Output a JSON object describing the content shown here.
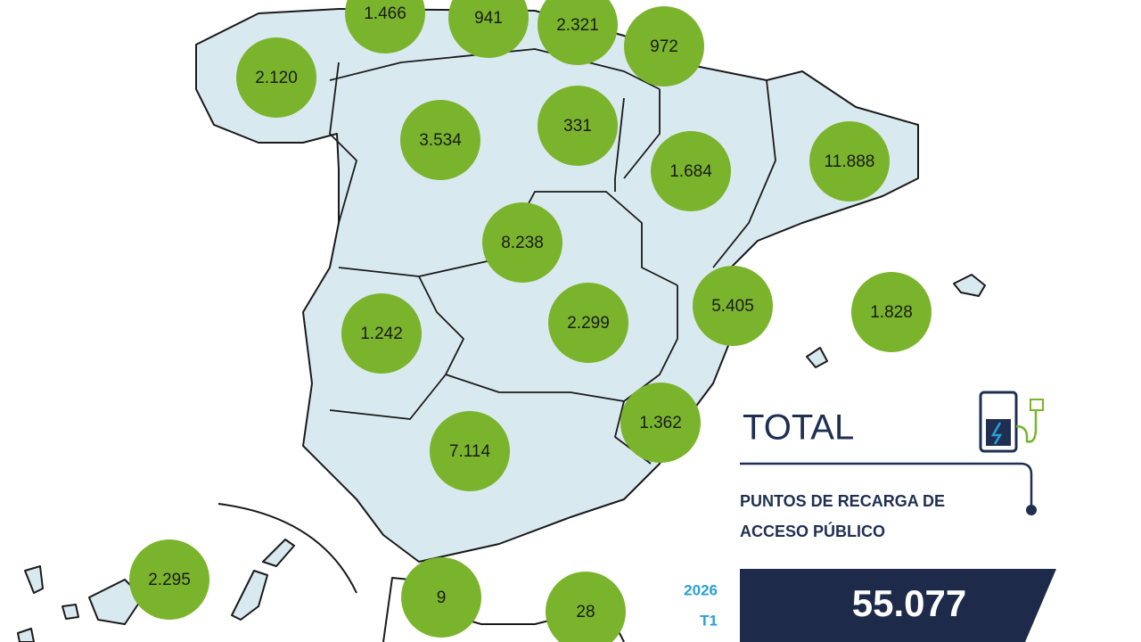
{
  "bubbles": [
    {
      "label": "1.466"
    },
    {
      "label": "941"
    },
    {
      "label": "2.321"
    },
    {
      "label": "972"
    },
    {
      "label": "2.120"
    },
    {
      "label": "3.534"
    },
    {
      "label": "331"
    },
    {
      "label": "1.684"
    },
    {
      "label": "11.888"
    },
    {
      "label": "8.238"
    },
    {
      "label": "5.405"
    },
    {
      "label": "1.828"
    },
    {
      "label": "1.242"
    },
    {
      "label": "2.299"
    },
    {
      "label": "1.362"
    },
    {
      "label": "7.114"
    },
    {
      "label": "2.295"
    },
    {
      "label": "9"
    },
    {
      "label": "28"
    }
  ],
  "total": {
    "title": "TOTAL",
    "subtitle_lines": [
      "PUNTOS DE RECARGA DE",
      "ACCESO PÚBLICO"
    ],
    "year": "2026",
    "quarter": "T1",
    "value": "55.077"
  }
}
